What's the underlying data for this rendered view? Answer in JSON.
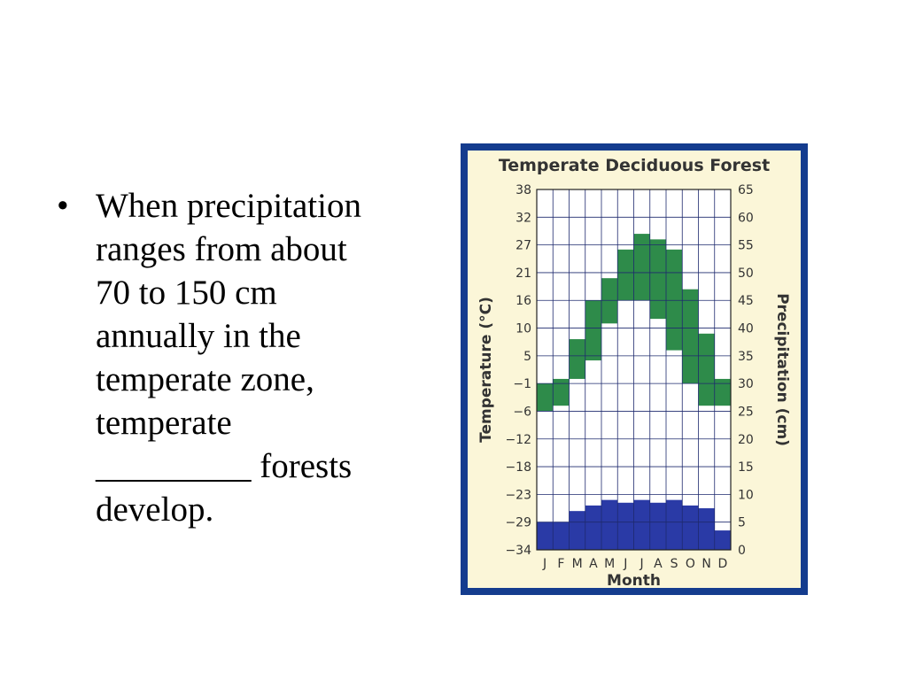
{
  "bullet": {
    "lines": [
      "When precipitation",
      "ranges from about",
      "70 to 150 cm",
      "annually in the",
      "temperate zone,",
      "temperate",
      "_________ forests",
      "develop."
    ]
  },
  "chart_data": {
    "type": "bar",
    "title": "Temperate Deciduous Forest",
    "categories": [
      "J",
      "F",
      "M",
      "A",
      "M",
      "J",
      "J",
      "A",
      "S",
      "O",
      "N",
      "D"
    ],
    "xlabel": "Month",
    "y_left": {
      "label": "Temperature (°C)",
      "ticks": [
        "38",
        "32",
        "27",
        "21",
        "16",
        "10",
        "5",
        "−1",
        "−6",
        "−12",
        "−18",
        "−23",
        "−29",
        "−34"
      ]
    },
    "y_right": {
      "label": "Precipitation (cm)",
      "ticks": [
        "65",
        "60",
        "55",
        "50",
        "45",
        "40",
        "35",
        "30",
        "25",
        "20",
        "15",
        "10",
        "5",
        "0"
      ],
      "ylim": [
        0,
        65
      ]
    },
    "series": [
      {
        "kind": "temperature-range",
        "low": [
          -6,
          -5,
          0,
          4,
          11,
          16,
          16,
          12,
          6,
          -1,
          -5,
          -5
        ],
        "high": [
          -1,
          0,
          8,
          16,
          20,
          26,
          29,
          28,
          26,
          18,
          9,
          0
        ]
      },
      {
        "kind": "precipitation",
        "values": [
          5,
          5,
          7,
          8,
          9,
          8.5,
          9,
          8.5,
          9,
          8,
          7.5,
          3.5
        ]
      }
    ],
    "colors": {
      "temperature": "#2e8b4a",
      "precipitation": "#2a3aa6",
      "background": "#fbf6d8",
      "frame": "#143c8e",
      "grid": "#1e2a6e"
    }
  }
}
